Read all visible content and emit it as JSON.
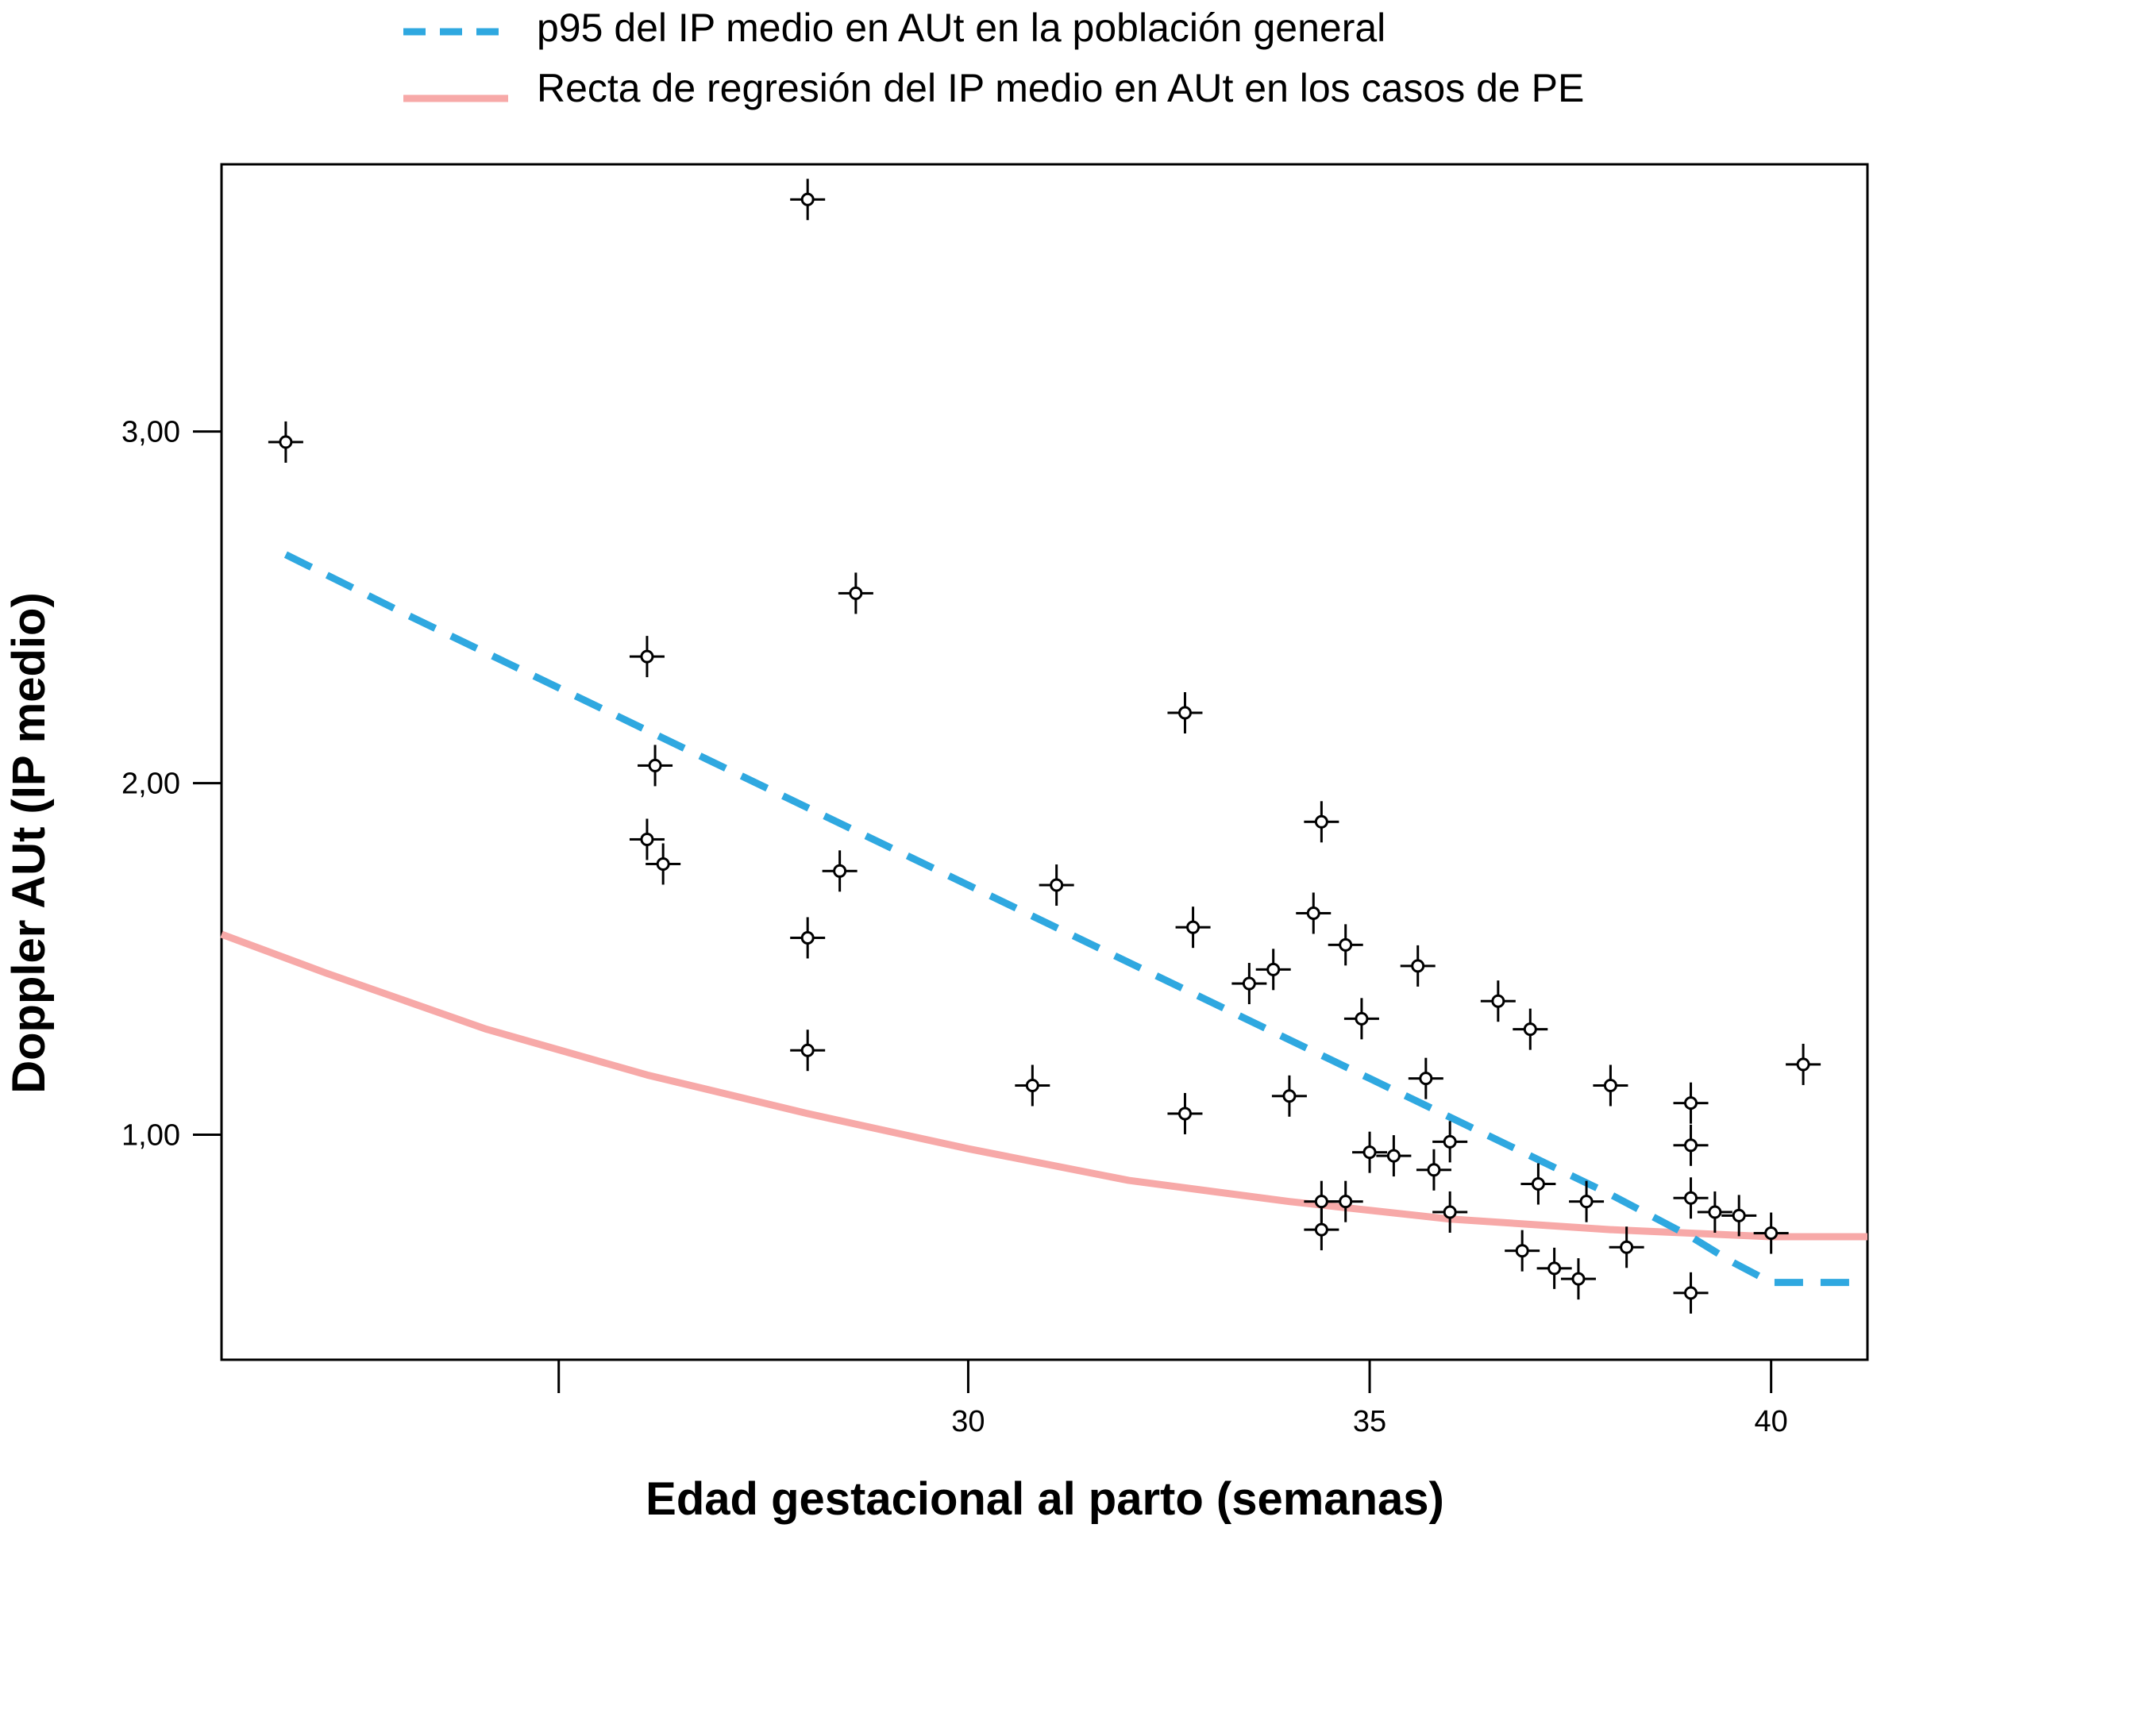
{
  "chart_data": {
    "type": "scatter",
    "title": "",
    "xlabel": "Edad gestacional al parto (semanas)",
    "ylabel": "Doppler AUt (IP medio)",
    "xlim": [
      20.7,
      41.2
    ],
    "ylim": [
      0.36,
      3.76
    ],
    "x_ticks": [
      {
        "value": 24.9,
        "label": ""
      },
      {
        "value": 30,
        "label": "30"
      },
      {
        "value": 35,
        "label": "35"
      },
      {
        "value": 40,
        "label": "40"
      }
    ],
    "y_ticks": [
      {
        "value": 1.0,
        "label": "1,00"
      },
      {
        "value": 2.0,
        "label": "2,00"
      },
      {
        "value": 3.0,
        "label": "3,00"
      }
    ],
    "grid": false,
    "legend_position": "top",
    "colors": {
      "p95": "#2fa8e0",
      "regression": "#f7a9a8",
      "points": "#000000"
    },
    "series": [
      {
        "name": "p95 del IP medio en AUt en la población general",
        "style": "dashed-line",
        "x": [
          21.5,
          23.0,
          25.0,
          27.0,
          29.0,
          31.0,
          33.0,
          34.0,
          35.0,
          36.0,
          37.0,
          38.0,
          38.5,
          39.0,
          39.5,
          40.0,
          41.0
        ],
        "y": [
          2.65,
          2.48,
          2.26,
          2.04,
          1.82,
          1.6,
          1.38,
          1.27,
          1.16,
          1.05,
          0.94,
          0.83,
          0.77,
          0.71,
          0.64,
          0.58,
          0.58
        ]
      },
      {
        "name": "Recta de regresión del IP medio en AUt en los casos de PE",
        "style": "line",
        "x": [
          20.7,
          22.0,
          24.0,
          26.0,
          28.0,
          30.0,
          32.0,
          34.0,
          36.0,
          38.0,
          40.0,
          41.2
        ],
        "y": [
          1.57,
          1.46,
          1.3,
          1.17,
          1.06,
          0.96,
          0.87,
          0.81,
          0.76,
          0.73,
          0.71,
          0.71
        ]
      },
      {
        "name": "",
        "style": "markers",
        "points": [
          [
            21.5,
            2.97
          ],
          [
            28.0,
            3.66
          ],
          [
            28.6,
            2.54
          ],
          [
            26.0,
            2.36
          ],
          [
            26.1,
            2.05
          ],
          [
            26.0,
            1.84
          ],
          [
            26.2,
            1.77
          ],
          [
            28.0,
            1.56
          ],
          [
            28.4,
            1.75
          ],
          [
            28.0,
            1.24
          ],
          [
            30.8,
            1.14
          ],
          [
            31.1,
            1.71
          ],
          [
            32.7,
            2.2
          ],
          [
            32.8,
            1.59
          ],
          [
            32.7,
            1.06
          ],
          [
            33.5,
            1.43
          ],
          [
            33.8,
            1.47
          ],
          [
            34.0,
            1.11
          ],
          [
            34.3,
            1.63
          ],
          [
            34.4,
            1.89
          ],
          [
            34.7,
            1.54
          ],
          [
            34.9,
            1.33
          ],
          [
            34.4,
            0.81
          ],
          [
            34.4,
            0.73
          ],
          [
            34.7,
            0.81
          ],
          [
            35.0,
            0.95
          ],
          [
            35.3,
            0.94
          ],
          [
            35.6,
            1.48
          ],
          [
            35.7,
            1.16
          ],
          [
            35.8,
            0.9
          ],
          [
            36.0,
            0.98
          ],
          [
            36.0,
            0.78
          ],
          [
            36.6,
            1.38
          ],
          [
            36.9,
            0.67
          ],
          [
            37.0,
            1.3
          ],
          [
            37.1,
            0.86
          ],
          [
            37.3,
            0.62
          ],
          [
            37.6,
            0.59
          ],
          [
            37.7,
            0.81
          ],
          [
            38.0,
            1.14
          ],
          [
            38.2,
            0.68
          ],
          [
            39.0,
            1.09
          ],
          [
            39.0,
            0.97
          ],
          [
            39.0,
            0.82
          ],
          [
            39.0,
            0.55
          ],
          [
            39.3,
            0.78
          ],
          [
            39.6,
            0.77
          ],
          [
            40.0,
            0.72
          ],
          [
            40.4,
            1.2
          ]
        ]
      }
    ]
  }
}
